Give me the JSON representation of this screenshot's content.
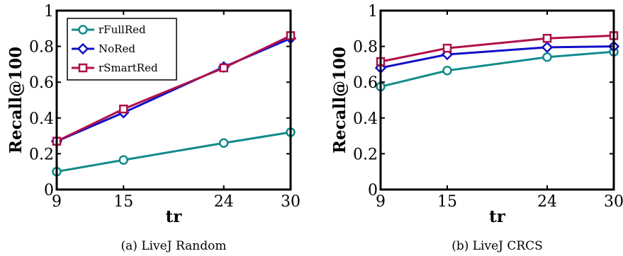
{
  "chart_data": [
    {
      "type": "line",
      "caption": "(a) LiveJ Random",
      "xlabel": "tr",
      "ylabel": "Recall@100",
      "x": [
        9,
        15,
        24,
        30
      ],
      "xticks": [
        "9",
        "15",
        "24",
        "30"
      ],
      "yticks": [
        "0",
        "0.2",
        "0.4",
        "0.6",
        "0.8",
        "1"
      ],
      "xlim": [
        9,
        30
      ],
      "ylim": [
        0,
        1
      ],
      "legend": "top-left",
      "series": [
        {
          "name": "rFullRed",
          "color": "#128A8A",
          "marker": "circle",
          "values": [
            0.1,
            0.165,
            0.26,
            0.32
          ]
        },
        {
          "name": "NoRed",
          "color": "#1010C8",
          "marker": "diamond",
          "values": [
            0.27,
            0.43,
            0.685,
            0.845
          ]
        },
        {
          "name": "rSmartRed",
          "color": "#B0104A",
          "marker": "square",
          "values": [
            0.27,
            0.45,
            0.68,
            0.86
          ]
        }
      ]
    },
    {
      "type": "line",
      "caption": "(b) LiveJ CRCS",
      "xlabel": "tr",
      "ylabel": "Recall@100",
      "x": [
        9,
        15,
        24,
        30
      ],
      "xticks": [
        "9",
        "15",
        "24",
        "30"
      ],
      "yticks": [
        "0",
        "0.2",
        "0.4",
        "0.6",
        "0.8",
        "1"
      ],
      "xlim": [
        9,
        30
      ],
      "ylim": [
        0,
        1
      ],
      "series": [
        {
          "name": "rFullRed",
          "color": "#128A8A",
          "marker": "circle",
          "values": [
            0.575,
            0.665,
            0.74,
            0.77
          ]
        },
        {
          "name": "NoRed",
          "color": "#1010C8",
          "marker": "diamond",
          "values": [
            0.68,
            0.755,
            0.795,
            0.8
          ]
        },
        {
          "name": "rSmartRed",
          "color": "#B0104A",
          "marker": "square",
          "values": [
            0.715,
            0.79,
            0.845,
            0.86
          ]
        }
      ]
    }
  ]
}
